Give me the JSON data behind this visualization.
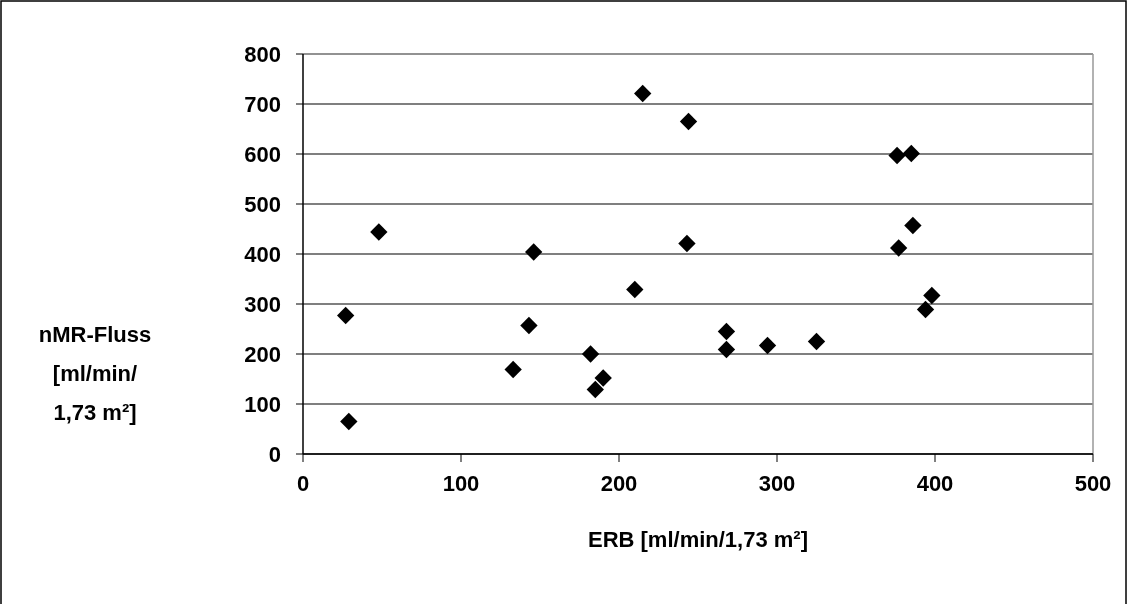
{
  "chart_data": {
    "type": "scatter",
    "xlabel": "ERB [ml/min/1,73 m²]",
    "ylabel": "nMR-Fluss\n[ml/min/\n1,73 m²]",
    "x": [
      27,
      29,
      48,
      133,
      143,
      146,
      182,
      185,
      190,
      210,
      215,
      243,
      244,
      268,
      268,
      294,
      325,
      376,
      385,
      386,
      377,
      398,
      394
    ],
    "series": [
      {
        "color": "#000000",
        "values": [
          277,
          65,
          444,
          169,
          257,
          404,
          200,
          129,
          152,
          329,
          721,
          421,
          665,
          245,
          209,
          217,
          225,
          597,
          601,
          457,
          412,
          317,
          289
        ]
      }
    ],
    "xlim": [
      0,
      500
    ],
    "xticks": [
      0,
      100,
      200,
      300,
      400,
      500
    ],
    "ylim": [
      0,
      800
    ],
    "yticks": [
      0,
      100,
      200,
      300,
      400,
      500,
      600,
      700,
      800
    ],
    "grid": "y",
    "marker": "diamond"
  }
}
